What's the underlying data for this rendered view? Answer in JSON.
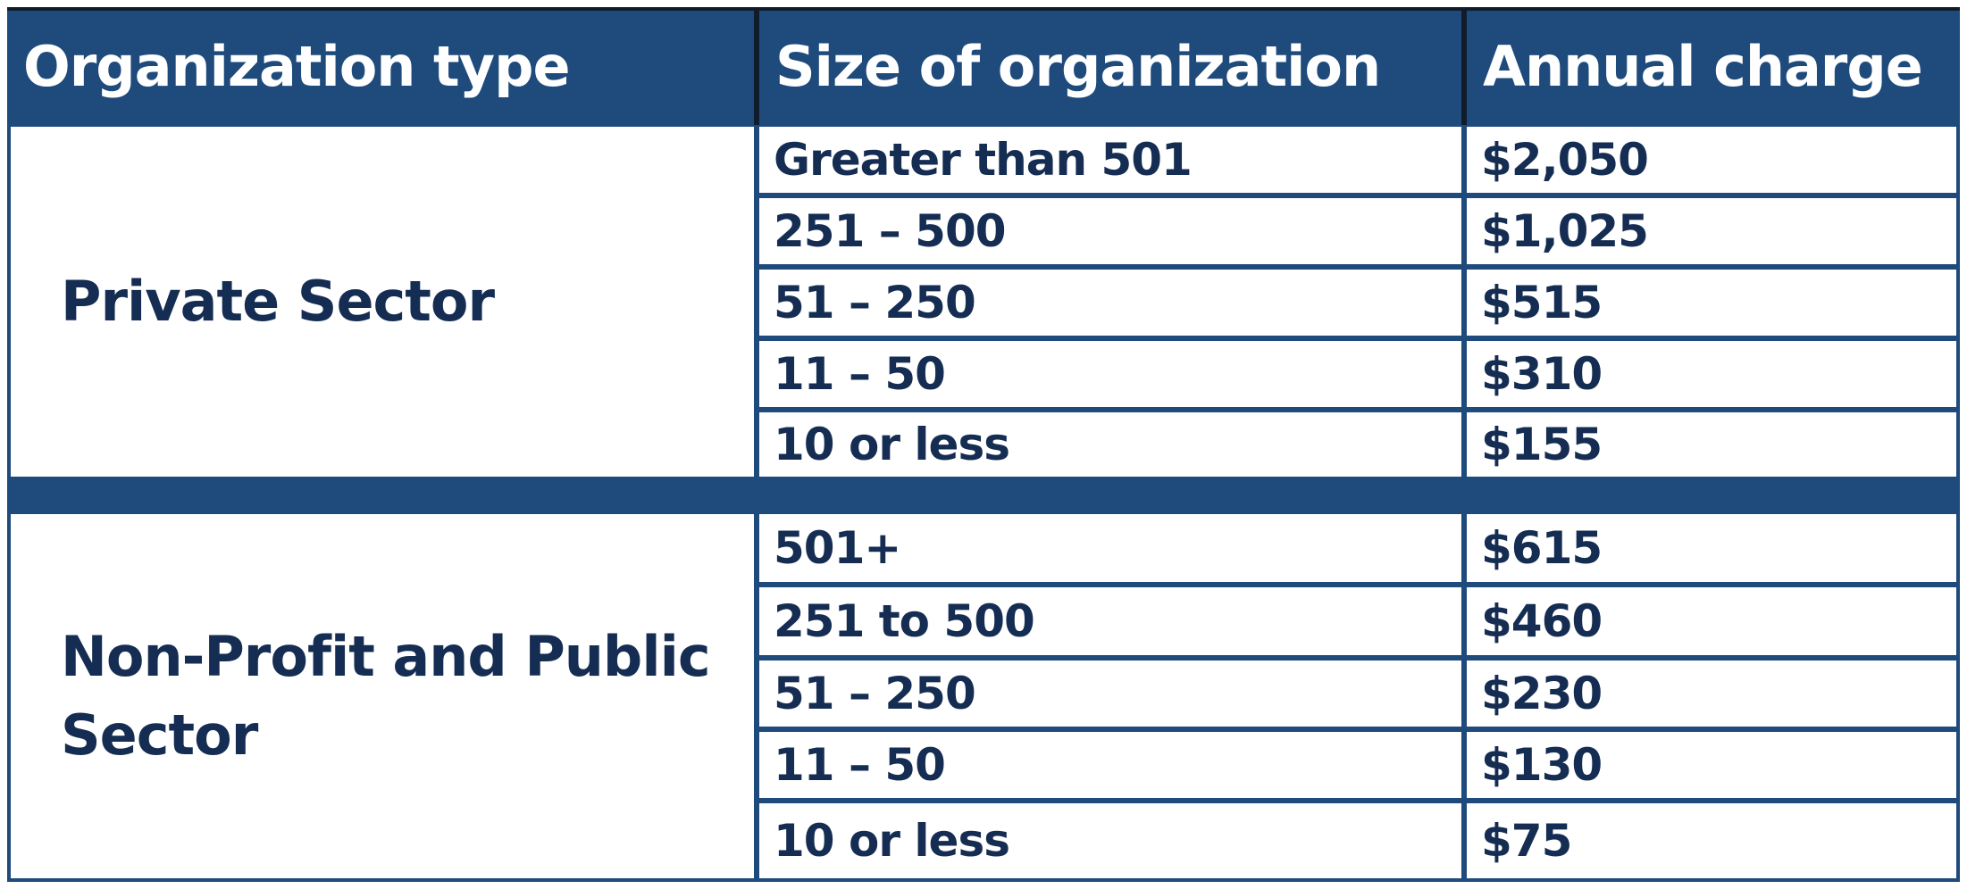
{
  "table": {
    "headers": [
      "Organization type",
      "Size of organization",
      "Annual charge"
    ],
    "groups": [
      {
        "type": "Private Sector",
        "rows": [
          {
            "size": "Greater than 501",
            "charge": "$2,050"
          },
          {
            "size": "251 – 500",
            "charge": "$1,025"
          },
          {
            "size": "51 – 250",
            "charge": "$515"
          },
          {
            "size": "11 – 50",
            "charge": "$310"
          },
          {
            "size": "10 or less",
            "charge": "$155"
          }
        ]
      },
      {
        "type": "Non-Profit and Public Sector",
        "rows": [
          {
            "size": "501+",
            "charge": "$615"
          },
          {
            "size": "251 to 500",
            "charge": "$460"
          },
          {
            "size": "51 – 250",
            "charge": "$230"
          },
          {
            "size": "11 – 50",
            "charge": "$130"
          },
          {
            "size": "10 or less",
            "charge": "$75"
          }
        ]
      }
    ]
  },
  "colors": {
    "header_background": "#1e4a7c",
    "text": "#152d52",
    "header_text": "#ffffff"
  }
}
